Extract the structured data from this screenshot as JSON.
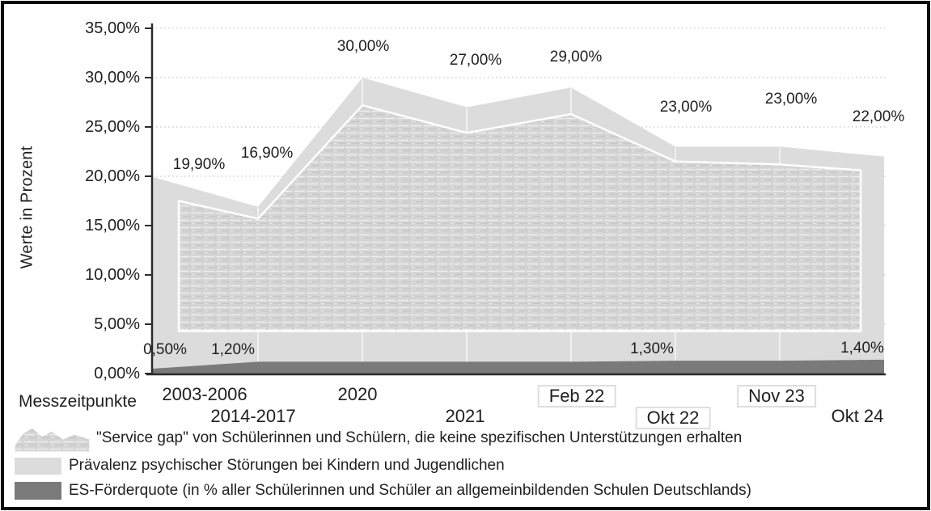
{
  "chart_data": {
    "type": "area",
    "title": "",
    "xlabel": "Messzeitpunkte",
    "ylabel": "Werte in Prozent",
    "categories": [
      "2003-2006",
      "2014-2017",
      "2020",
      "2021",
      "Feb 22",
      "Okt 22",
      "Nov 23",
      "Okt 24"
    ],
    "y_ticks": [
      "35,00%",
      "30,00%",
      "25,00%",
      "20,00%",
      "15,00%",
      "10,00%",
      "5,00%",
      "0,00%"
    ],
    "ylim": [
      0,
      35
    ],
    "grid": "dotted horizontal gridlines every 5%",
    "legend_position": "bottom-left",
    "series": [
      {
        "name": "\"Service gap\" von Schülerinnen und Schülern, die keine spezifischen Unterstützungen erhalten",
        "type": "textured-band",
        "color": "#d3d3d3",
        "values": [
          17.5,
          15.7,
          27.2,
          24.4,
          26.3,
          21.5,
          21.2,
          20.6
        ],
        "band_bottom_pct": 4.3,
        "labels": [
          "",
          "",
          "",
          "",
          "",
          "",
          "",
          ""
        ]
      },
      {
        "name": "Prävalenz psychischer Störungen bei Kindern und Jugendlichen",
        "type": "area",
        "color": "#dcdcdc",
        "values": [
          19.9,
          16.9,
          30.0,
          27.0,
          29.0,
          23.0,
          23.0,
          22.0
        ],
        "labels": [
          "19,90%",
          "16,90%",
          "30,00%",
          "27,00%",
          "29,00%",
          "23,00%",
          "23,00%",
          "22,00%"
        ]
      },
      {
        "name": "ES-Förderquote (in % aller Schülerinnen und Schüler an allgemeinbildenden Schulen Deutschlands)",
        "type": "area",
        "color": "#7a7a7a",
        "values": [
          0.5,
          1.2,
          1.2,
          1.2,
          1.2,
          1.3,
          1.3,
          1.4
        ],
        "labels": [
          "0,50%",
          "1,20%",
          "",
          "",
          "",
          "1,30%",
          "",
          "1,40%"
        ]
      }
    ],
    "axis_color": "#2b2b2b",
    "gridline_color": "#cfcfcf"
  }
}
